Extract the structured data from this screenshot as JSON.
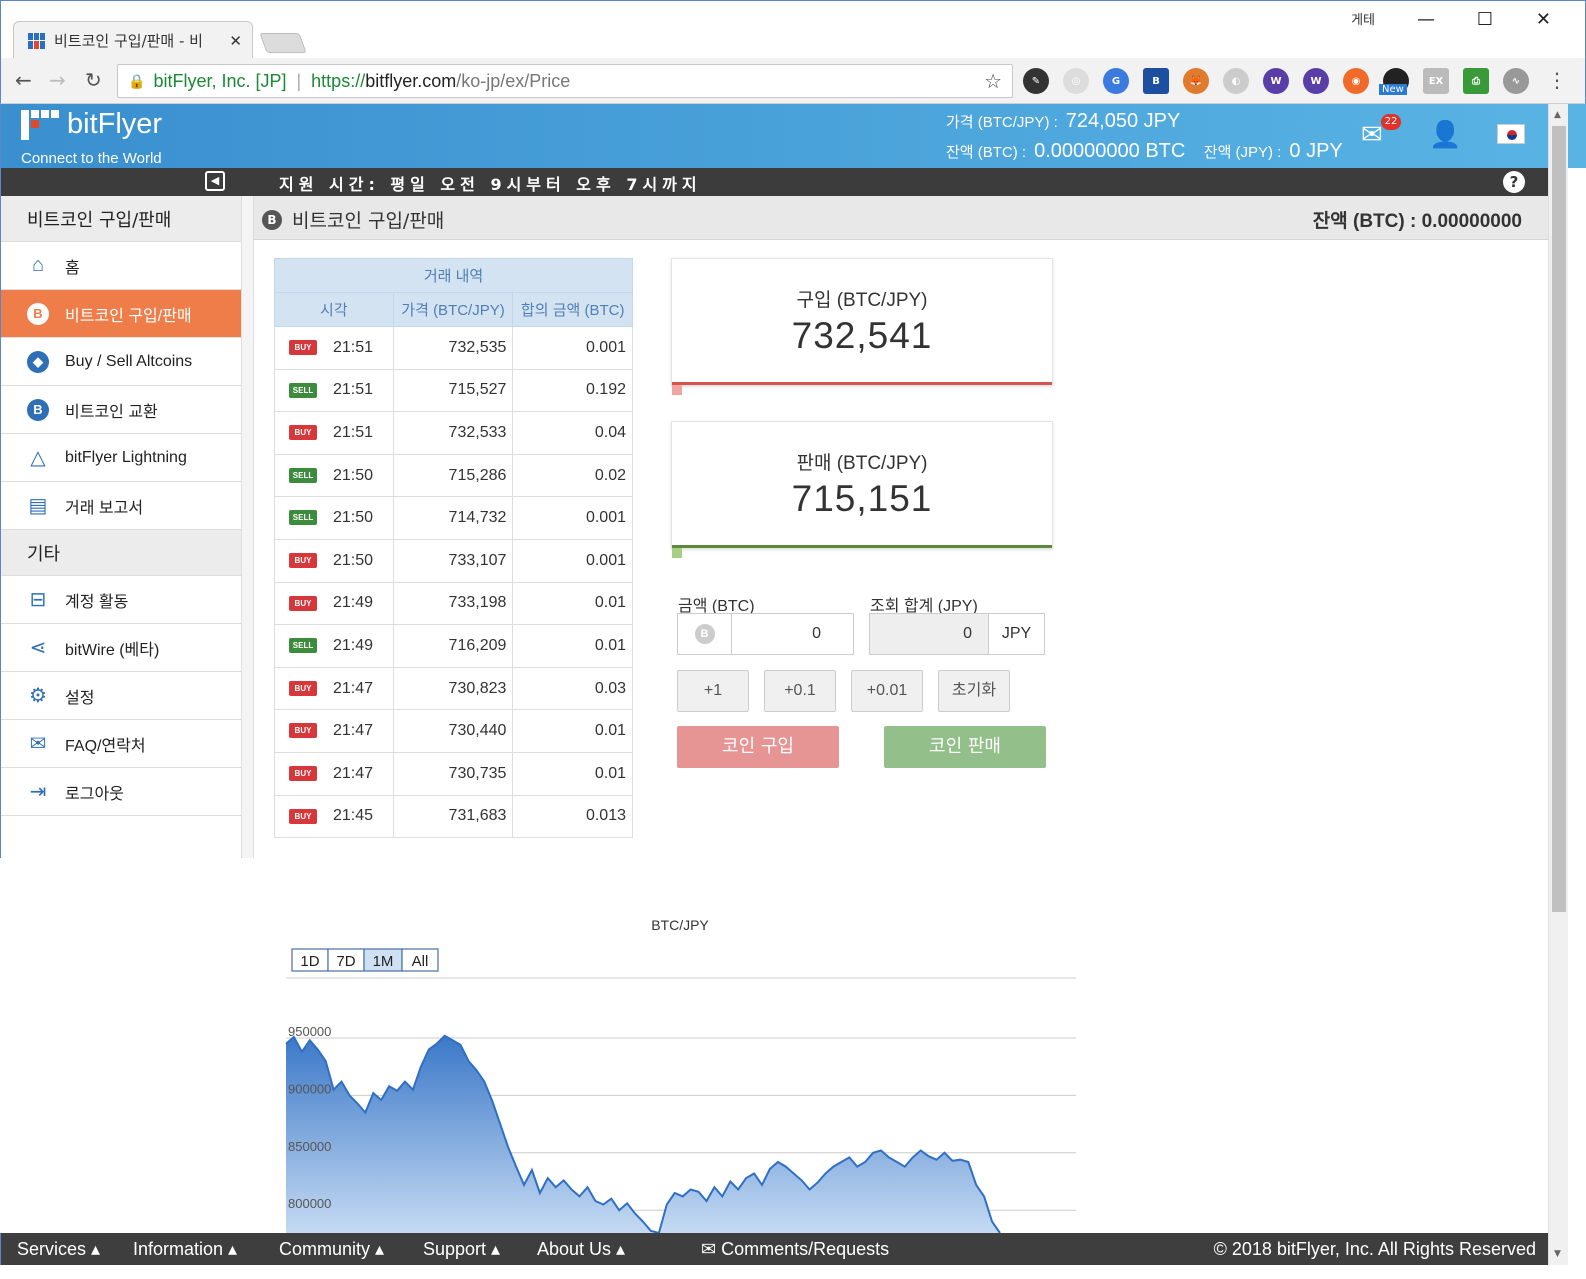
{
  "browser": {
    "tab_title": "비트코인 구입/판매 - 비",
    "window_user": "게테",
    "url_org": "bitFlyer, Inc. [JP]",
    "url_scheme": "https://",
    "url_domain": "bitflyer.com",
    "url_path": "/ko-jp/ex/Price",
    "ext_new_label": "New"
  },
  "header": {
    "logo_text": "bitFlyer",
    "tagline": "Connect to the World",
    "price_label": "가격 (BTC/JPY) :",
    "price_value": "724,050  JPY",
    "btc_balance_label": "잔액 (BTC) :",
    "btc_balance_value": "0.00000000 BTC",
    "jpy_balance_label": "잔액 (JPY) :",
    "jpy_balance_value": "0 JPY",
    "mail_count": "22"
  },
  "infobar": {
    "notice": "지원 시간: 평일 오전 9시부터 오후 7시까지",
    "help": "?"
  },
  "sidebar": {
    "section1": "비트코인 구입/판매",
    "items": [
      {
        "label": "홈"
      },
      {
        "label": "비트코인 구입/판매"
      },
      {
        "label": "Buy / Sell Altcoins"
      },
      {
        "label": "비트코인 교환"
      },
      {
        "label": "bitFlyer Lightning"
      },
      {
        "label": "거래 보고서"
      }
    ],
    "section2": "기타",
    "items2": [
      {
        "label": "계정 활동"
      },
      {
        "label": "bitWire (베타)"
      },
      {
        "label": "설정"
      },
      {
        "label": "FAQ/연락처"
      },
      {
        "label": "로그아웃"
      }
    ]
  },
  "content": {
    "title": "비트코인 구입/판매",
    "balance": "잔액 (BTC) : 0.00000000"
  },
  "trades": {
    "caption": "거래 내역",
    "headers": [
      "시각",
      "가격 (BTC/JPY)",
      "합의 금액 (BTC)"
    ],
    "rows": [
      {
        "side": "BUY",
        "time": "21:51",
        "price": "732,535",
        "amount": "0.001"
      },
      {
        "side": "SELL",
        "time": "21:51",
        "price": "715,527",
        "amount": "0.192"
      },
      {
        "side": "BUY",
        "time": "21:51",
        "price": "732,533",
        "amount": "0.04"
      },
      {
        "side": "SELL",
        "time": "21:50",
        "price": "715,286",
        "amount": "0.02"
      },
      {
        "side": "SELL",
        "time": "21:50",
        "price": "714,732",
        "amount": "0.001"
      },
      {
        "side": "BUY",
        "time": "21:50",
        "price": "733,107",
        "amount": "0.001"
      },
      {
        "side": "BUY",
        "time": "21:49",
        "price": "733,198",
        "amount": "0.01"
      },
      {
        "side": "SELL",
        "time": "21:49",
        "price": "716,209",
        "amount": "0.01"
      },
      {
        "side": "BUY",
        "time": "21:47",
        "price": "730,823",
        "amount": "0.03"
      },
      {
        "side": "BUY",
        "time": "21:47",
        "price": "730,440",
        "amount": "0.01"
      },
      {
        "side": "BUY",
        "time": "21:47",
        "price": "730,735",
        "amount": "0.01"
      },
      {
        "side": "BUY",
        "time": "21:45",
        "price": "731,683",
        "amount": "0.013"
      }
    ]
  },
  "buy_box": {
    "label": "구입 (BTC/JPY)",
    "value": "732,541",
    "color": "#d9534f"
  },
  "sell_box": {
    "label": "판매 (BTC/JPY)",
    "value": "715,151",
    "color": "#5c8a3c"
  },
  "form": {
    "amount_label": "금액 (BTC)",
    "amount_value": "0",
    "total_label": "조회 합계 (JPY)",
    "total_value": "0",
    "total_unit": "JPY",
    "quick": [
      "+1",
      "+0.1",
      "+0.01",
      "초기화"
    ],
    "buy_button": "코인 구입",
    "sell_button": "코인 판매",
    "buy_color": "#e69594",
    "sell_color": "#93bf8b"
  },
  "chart_data": {
    "type": "area",
    "title": "BTC/JPY",
    "ranges": [
      "1D",
      "7D",
      "1M",
      "All"
    ],
    "selected_range": "1M",
    "yticks": [
      950000,
      900000,
      850000,
      800000
    ],
    "ylim": [
      780000,
      960000
    ],
    "grid": true,
    "values": [
      945000,
      951000,
      938000,
      948000,
      940000,
      930000,
      905000,
      912000,
      900000,
      893000,
      885000,
      902000,
      896000,
      908000,
      904000,
      912000,
      905000,
      925000,
      940000,
      945000,
      952000,
      948000,
      944000,
      930000,
      922000,
      912000,
      895000,
      875000,
      855000,
      838000,
      822000,
      835000,
      815000,
      828000,
      820000,
      826000,
      818000,
      812000,
      820000,
      808000,
      805000,
      810000,
      800000,
      806000,
      797000,
      790000,
      782000,
      770000,
      805000,
      815000,
      812000,
      818000,
      816000,
      808000,
      820000,
      812000,
      825000,
      818000,
      828000,
      832000,
      822000,
      836000,
      842000,
      838000,
      832000,
      826000,
      818000,
      824000,
      832000,
      838000,
      842000,
      846000,
      838000,
      842000,
      850000,
      852000,
      846000,
      842000,
      838000,
      846000,
      852000,
      847000,
      844000,
      850000,
      843000,
      844000,
      842000,
      822000,
      812000,
      790000,
      750000
    ]
  },
  "footer": {
    "services": "Services",
    "information": "Information",
    "community": "Community",
    "support": "Support",
    "about": "About Us",
    "comments": "Comments/Requests",
    "copyright": "© 2018 bitFlyer, Inc. All Rights Reserved"
  }
}
